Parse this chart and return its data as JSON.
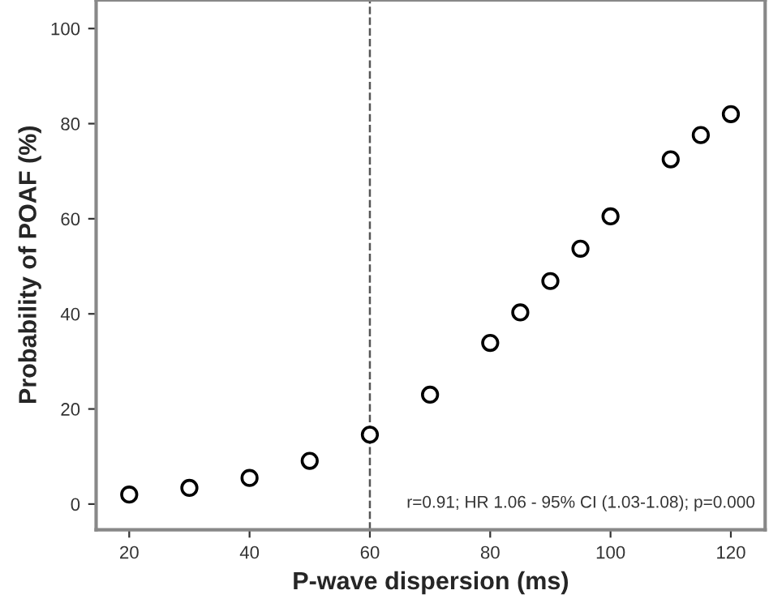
{
  "chart_data": {
    "type": "scatter",
    "xlabel": "P-wave dispersion (ms)",
    "ylabel": "Probability of POAF (%)",
    "x": [
      20,
      30,
      40,
      50,
      60,
      70,
      80,
      85,
      90,
      95,
      100,
      110,
      115,
      120
    ],
    "values": [
      2,
      3.4,
      5.5,
      9.1,
      14.6,
      23,
      33.9,
      40.3,
      46.9,
      53.7,
      60.5,
      72.5,
      77.6,
      82
    ],
    "color": "#000000",
    "marker": "circle",
    "xlim": [
      14.5,
      125.7
    ],
    "ylim": [
      -5.4,
      106
    ],
    "xticks": [
      20,
      40,
      60,
      80,
      100,
      120
    ],
    "yticks": [
      0,
      20,
      40,
      60,
      80,
      100
    ],
    "ref_lines": [
      {
        "axis": "x",
        "value": 60,
        "line_style": "dashed",
        "color": "#555555"
      }
    ],
    "annotations": [
      "r=0.91; HR 1.06 - 95% CI (1.03-1.08); p=0.000"
    ],
    "grid": false
  }
}
